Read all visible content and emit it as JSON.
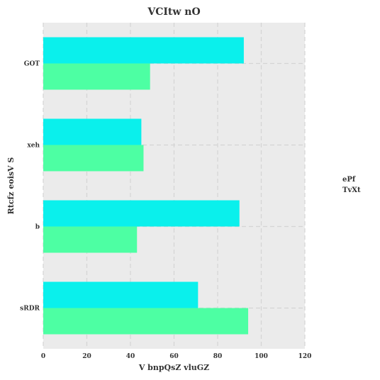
{
  "chart_data": {
    "type": "bar",
    "orientation": "horizontal",
    "title": "VCItw nO",
    "xlabel": "V bnpQsZ vluGZ",
    "ylabel": "Rtcfz eoisV S",
    "categories": [
      "GOT",
      "xeh",
      "b",
      "sRDR"
    ],
    "xlim": [
      0,
      120
    ],
    "xticks": [
      0,
      20,
      40,
      60,
      80,
      100,
      120
    ],
    "grid": true,
    "legend_position": "right",
    "series": [
      {
        "name": "ePf",
        "color": "#0af0ec",
        "values": [
          92,
          45,
          90,
          71
        ]
      },
      {
        "name": "TvXt",
        "color": "#4dffa3",
        "values": [
          49,
          46,
          43,
          94
        ]
      }
    ]
  }
}
